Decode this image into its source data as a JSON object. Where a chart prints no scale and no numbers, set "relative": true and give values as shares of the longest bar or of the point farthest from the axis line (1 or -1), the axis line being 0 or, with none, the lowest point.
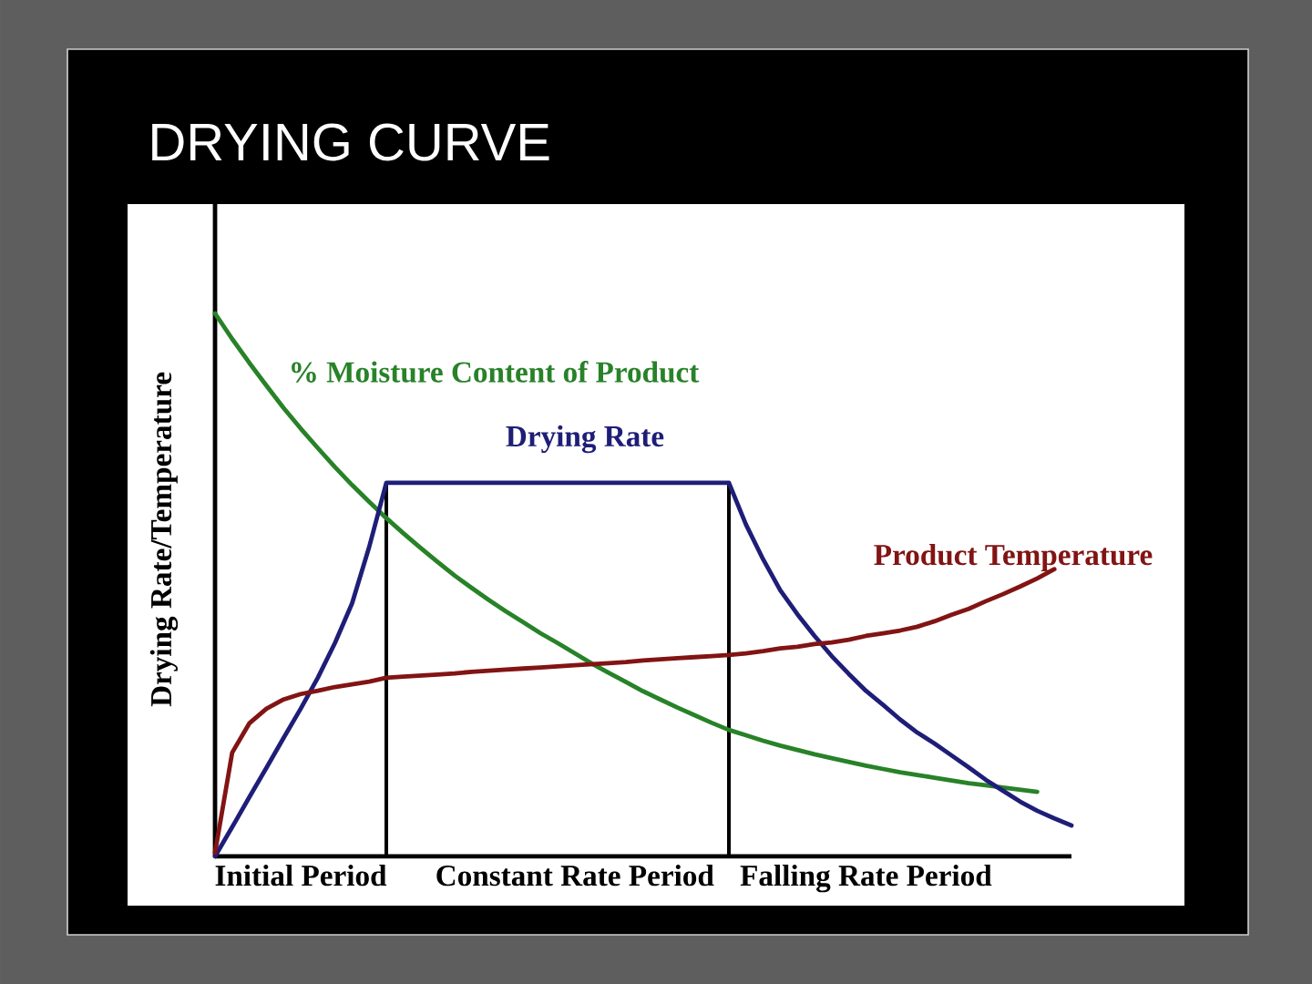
{
  "chart_data": {
    "type": "line",
    "title": "DRYING CURVE",
    "ylabel": "Drying Rate/Temperature",
    "relative": true,
    "categories": [
      null,
      null,
      null,
      null,
      null,
      "Initial Period",
      null,
      null,
      null,
      null,
      null,
      null,
      null,
      null,
      null,
      null,
      null,
      null,
      null,
      null,
      null,
      "Constant Rate Period",
      null,
      null,
      null,
      null,
      null,
      null,
      null,
      null,
      null,
      null,
      null,
      null,
      null,
      null,
      null,
      null,
      "Falling Rate Period",
      null,
      null,
      null,
      null,
      null,
      null,
      null,
      null,
      null,
      null,
      null,
      null
    ],
    "series": [
      {
        "name": "% Moisture Content of Product",
        "color": "#288228",
        "values": [
          1.0,
          0.953,
          0.909,
          0.867,
          0.826,
          0.788,
          0.752,
          0.717,
          0.684,
          0.653,
          0.623,
          0.595,
          0.568,
          0.542,
          0.517,
          0.494,
          0.472,
          0.451,
          0.431,
          0.411,
          0.393,
          0.374,
          0.355,
          0.338,
          0.321,
          0.304,
          0.289,
          0.274,
          0.26,
          0.246,
          0.233,
          0.223,
          0.213,
          0.204,
          0.196,
          0.188,
          0.181,
          0.174,
          0.167,
          0.161,
          0.155,
          0.15,
          0.145,
          0.14,
          0.135,
          0.131,
          0.127,
          0.123,
          0.119,
          null,
          null
        ]
      },
      {
        "name": "Drying Rate",
        "color": "#1e1e78",
        "values": [
          0,
          0.054,
          0.109,
          0.163,
          0.218,
          0.272,
          0.329,
          0.393,
          0.466,
          0.57,
          0.688,
          0.688,
          0.688,
          0.688,
          0.688,
          0.688,
          0.688,
          0.688,
          0.688,
          0.688,
          0.688,
          0.688,
          0.688,
          0.688,
          0.688,
          0.688,
          0.688,
          0.688,
          0.688,
          0.688,
          0.688,
          0.611,
          0.547,
          0.49,
          0.446,
          0.406,
          0.369,
          0.336,
          0.305,
          0.279,
          0.252,
          0.228,
          0.208,
          0.186,
          0.164,
          0.141,
          0.121,
          0.101,
          0.084,
          0.07,
          0.057
        ]
      },
      {
        "name": "Product Temperature",
        "color": "#821414",
        "values": [
          0.007,
          0.191,
          0.245,
          0.272,
          0.289,
          0.299,
          0.305,
          0.312,
          0.317,
          0.322,
          0.329,
          0.331,
          0.333,
          0.335,
          0.337,
          0.34,
          0.342,
          0.344,
          0.346,
          0.348,
          0.35,
          0.352,
          0.354,
          0.356,
          0.358,
          0.361,
          0.363,
          0.365,
          0.367,
          0.369,
          0.371,
          0.374,
          0.378,
          0.383,
          0.386,
          0.391,
          0.394,
          0.399,
          0.406,
          0.411,
          0.416,
          0.423,
          0.433,
          0.445,
          0.456,
          0.47,
          0.483,
          0.497,
          0.512,
          0.529,
          null
        ]
      }
    ]
  }
}
